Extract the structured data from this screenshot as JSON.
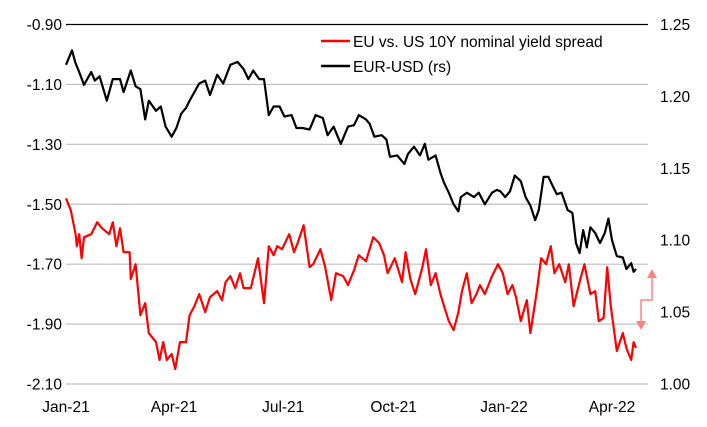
{
  "chart_data": {
    "type": "line",
    "title": "",
    "x_unit": "days since 2021-01-01",
    "xlim": [
      0,
      480
    ],
    "x_ticks": [
      {
        "label": "Jan-21",
        "day": 0
      },
      {
        "label": "Apr-21",
        "day": 90
      },
      {
        "label": "Jul-21",
        "day": 181
      },
      {
        "label": "Oct-21",
        "day": 273
      },
      {
        "label": "Jan-22",
        "day": 365
      },
      {
        "label": "Apr-22",
        "day": 455
      }
    ],
    "y_left": {
      "ylim": [
        -2.1,
        -0.9
      ],
      "ticks": [
        "-0.90",
        "-1.10",
        "-1.30",
        "-1.50",
        "-1.70",
        "-1.90",
        "-2.10"
      ],
      "tick_values": [
        -0.9,
        -1.1,
        -1.3,
        -1.5,
        -1.7,
        -1.9,
        -2.1
      ]
    },
    "y_right": {
      "ylim": [
        1.0,
        1.25
      ],
      "ticks": [
        "1.25",
        "1.20",
        "1.15",
        "1.10",
        "1.05",
        "1.00"
      ],
      "tick_values": [
        1.25,
        1.2,
        1.15,
        1.1,
        1.05,
        1.0
      ]
    },
    "grid": true,
    "legend_position": "top-right",
    "annotation": "red bracket arrows near right axis between 1.05 and 1.08",
    "series": [
      {
        "name": "EU vs. US 10Y nominal yield spread",
        "axis": "left",
        "color": "#ff0000",
        "points": [
          [
            0,
            -1.48
          ],
          [
            4,
            -1.52
          ],
          [
            8,
            -1.6
          ],
          [
            9,
            -1.64
          ],
          [
            11,
            -1.6
          ],
          [
            13,
            -1.68
          ],
          [
            15,
            -1.61
          ],
          [
            21,
            -1.6
          ],
          [
            26,
            -1.56
          ],
          [
            30,
            -1.58
          ],
          [
            36,
            -1.6
          ],
          [
            39,
            -1.56
          ],
          [
            42,
            -1.64
          ],
          [
            45,
            -1.58
          ],
          [
            48,
            -1.66
          ],
          [
            53,
            -1.66
          ],
          [
            54,
            -1.75
          ],
          [
            58,
            -1.7
          ],
          [
            62,
            -1.87
          ],
          [
            66,
            -1.83
          ],
          [
            69,
            -1.93
          ],
          [
            75,
            -1.96
          ],
          [
            78,
            -2.02
          ],
          [
            81,
            -1.96
          ],
          [
            84,
            -2.02
          ],
          [
            88,
            -2.0
          ],
          [
            91,
            -2.05
          ],
          [
            95,
            -1.96
          ],
          [
            100,
            -1.96
          ],
          [
            103,
            -1.87
          ],
          [
            107,
            -1.84
          ],
          [
            111,
            -1.8
          ],
          [
            116,
            -1.86
          ],
          [
            120,
            -1.81
          ],
          [
            126,
            -1.79
          ],
          [
            130,
            -1.82
          ],
          [
            133,
            -1.76
          ],
          [
            137,
            -1.74
          ],
          [
            141,
            -1.78
          ],
          [
            145,
            -1.73
          ],
          [
            148,
            -1.78
          ],
          [
            154,
            -1.78
          ],
          [
            160,
            -1.68
          ],
          [
            165,
            -1.83
          ],
          [
            169,
            -1.64
          ],
          [
            173,
            -1.67
          ],
          [
            176,
            -1.64
          ],
          [
            180,
            -1.65
          ],
          [
            186,
            -1.6
          ],
          [
            190,
            -1.66
          ],
          [
            193,
            -1.63
          ],
          [
            198,
            -1.57
          ],
          [
            203,
            -1.71
          ],
          [
            206,
            -1.7
          ],
          [
            212,
            -1.65
          ],
          [
            216,
            -1.71
          ],
          [
            221,
            -1.82
          ],
          [
            225,
            -1.73
          ],
          [
            231,
            -1.74
          ],
          [
            235,
            -1.77
          ],
          [
            240,
            -1.72
          ],
          [
            244,
            -1.67
          ],
          [
            250,
            -1.69
          ],
          [
            256,
            -1.61
          ],
          [
            261,
            -1.63
          ],
          [
            265,
            -1.67
          ],
          [
            268,
            -1.73
          ],
          [
            274,
            -1.68
          ],
          [
            280,
            -1.76
          ],
          [
            283,
            -1.66
          ],
          [
            287,
            -1.75
          ],
          [
            291,
            -1.8
          ],
          [
            297,
            -1.71
          ],
          [
            300,
            -1.65
          ],
          [
            304,
            -1.77
          ],
          [
            308,
            -1.73
          ],
          [
            312,
            -1.8
          ],
          [
            315,
            -1.84
          ],
          [
            319,
            -1.89
          ],
          [
            323,
            -1.92
          ],
          [
            327,
            -1.86
          ],
          [
            330,
            -1.79
          ],
          [
            334,
            -1.73
          ],
          [
            338,
            -1.83
          ],
          [
            342,
            -1.8
          ],
          [
            345,
            -1.77
          ],
          [
            349,
            -1.8
          ],
          [
            355,
            -1.74
          ],
          [
            360,
            -1.7
          ],
          [
            364,
            -1.73
          ],
          [
            368,
            -1.8
          ],
          [
            372,
            -1.77
          ],
          [
            375,
            -1.81
          ],
          [
            379,
            -1.89
          ],
          [
            384,
            -1.82
          ],
          [
            387,
            -1.93
          ],
          [
            392,
            -1.8
          ],
          [
            396,
            -1.68
          ],
          [
            400,
            -1.7
          ],
          [
            404,
            -1.64
          ],
          [
            407,
            -1.73
          ],
          [
            411,
            -1.7
          ],
          [
            416,
            -1.76
          ],
          [
            419,
            -1.7
          ],
          [
            423,
            -1.84
          ],
          [
            428,
            -1.76
          ],
          [
            432,
            -1.7
          ],
          [
            437,
            -1.8
          ],
          [
            441,
            -1.79
          ],
          [
            444,
            -1.89
          ],
          [
            448,
            -1.88
          ],
          [
            451,
            -1.71
          ],
          [
            454,
            -1.84
          ],
          [
            459,
            -1.99
          ],
          [
            464,
            -1.93
          ],
          [
            467,
            -1.98
          ],
          [
            471,
            -2.02
          ],
          [
            473,
            -1.96
          ],
          [
            475,
            -1.98
          ]
        ]
      },
      {
        "name": "EUR-USD (rs)",
        "axis": "right",
        "color": "#000000",
        "points": [
          [
            0,
            1.222
          ],
          [
            5,
            1.232
          ],
          [
            8,
            1.223
          ],
          [
            11,
            1.217
          ],
          [
            15,
            1.208
          ],
          [
            21,
            1.217
          ],
          [
            24,
            1.211
          ],
          [
            28,
            1.214
          ],
          [
            34,
            1.197
          ],
          [
            39,
            1.212
          ],
          [
            45,
            1.212
          ],
          [
            48,
            1.203
          ],
          [
            54,
            1.218
          ],
          [
            58,
            1.207
          ],
          [
            62,
            1.205
          ],
          [
            66,
            1.184
          ],
          [
            69,
            1.197
          ],
          [
            75,
            1.19
          ],
          [
            79,
            1.193
          ],
          [
            83,
            1.179
          ],
          [
            88,
            1.172
          ],
          [
            92,
            1.178
          ],
          [
            96,
            1.188
          ],
          [
            100,
            1.192
          ],
          [
            103,
            1.197
          ],
          [
            111,
            1.209
          ],
          [
            116,
            1.211
          ],
          [
            120,
            1.201
          ],
          [
            126,
            1.215
          ],
          [
            131,
            1.209
          ],
          [
            137,
            1.222
          ],
          [
            143,
            1.224
          ],
          [
            148,
            1.219
          ],
          [
            152,
            1.212
          ],
          [
            156,
            1.218
          ],
          [
            161,
            1.212
          ],
          [
            165,
            1.212
          ],
          [
            169,
            1.187
          ],
          [
            173,
            1.193
          ],
          [
            178,
            1.193
          ],
          [
            182,
            1.186
          ],
          [
            188,
            1.187
          ],
          [
            192,
            1.178
          ],
          [
            197,
            1.178
          ],
          [
            203,
            1.177
          ],
          [
            208,
            1.187
          ],
          [
            214,
            1.185
          ],
          [
            218,
            1.173
          ],
          [
            223,
            1.179
          ],
          [
            229,
            1.167
          ],
          [
            235,
            1.179
          ],
          [
            240,
            1.18
          ],
          [
            244,
            1.187
          ],
          [
            250,
            1.184
          ],
          [
            253,
            1.181
          ],
          [
            257,
            1.172
          ],
          [
            263,
            1.173
          ],
          [
            267,
            1.17
          ],
          [
            270,
            1.158
          ],
          [
            276,
            1.159
          ],
          [
            282,
            1.153
          ],
          [
            285,
            1.16
          ],
          [
            290,
            1.165
          ],
          [
            295,
            1.159
          ],
          [
            299,
            1.167
          ],
          [
            302,
            1.156
          ],
          [
            308,
            1.159
          ],
          [
            312,
            1.147
          ],
          [
            315,
            1.14
          ],
          [
            319,
            1.133
          ],
          [
            323,
            1.125
          ],
          [
            327,
            1.12
          ],
          [
            329,
            1.13
          ],
          [
            334,
            1.133
          ],
          [
            340,
            1.13
          ],
          [
            344,
            1.133
          ],
          [
            349,
            1.125
          ],
          [
            355,
            1.133
          ],
          [
            359,
            1.135
          ],
          [
            362,
            1.134
          ],
          [
            366,
            1.13
          ],
          [
            370,
            1.134
          ],
          [
            374,
            1.145
          ],
          [
            379,
            1.141
          ],
          [
            383,
            1.13
          ],
          [
            387,
            1.124
          ],
          [
            391,
            1.114
          ],
          [
            394,
            1.121
          ],
          [
            398,
            1.144
          ],
          [
            402,
            1.144
          ],
          [
            406,
            1.137
          ],
          [
            409,
            1.132
          ],
          [
            413,
            1.133
          ],
          [
            418,
            1.121
          ],
          [
            422,
            1.119
          ],
          [
            425,
            1.098
          ],
          [
            428,
            1.091
          ],
          [
            431,
            1.107
          ],
          [
            434,
            1.095
          ],
          [
            437,
            1.109
          ],
          [
            441,
            1.105
          ],
          [
            445,
            1.098
          ],
          [
            449,
            1.105
          ],
          [
            452,
            1.115
          ],
          [
            455,
            1.1
          ],
          [
            459,
            1.089
          ],
          [
            464,
            1.088
          ],
          [
            467,
            1.08
          ],
          [
            471,
            1.084
          ],
          [
            473,
            1.078
          ],
          [
            475,
            1.08
          ]
        ]
      }
    ]
  },
  "legend": {
    "items": [
      "EU vs. US 10Y nominal yield spread",
      "EUR-USD (rs)"
    ]
  },
  "colors": {
    "grid": "#bfbfbf",
    "arrow": "#ff8080"
  }
}
